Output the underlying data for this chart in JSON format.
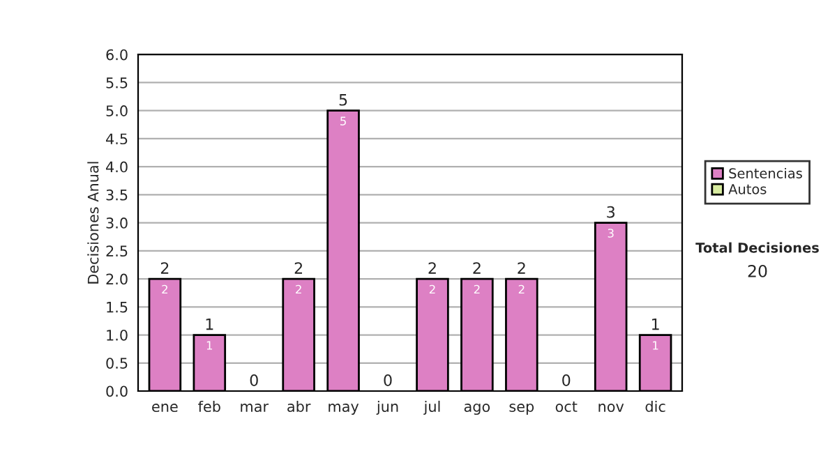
{
  "chart_data": {
    "type": "bar",
    "stacked": true,
    "ylabel": "Decisiones Anual",
    "categories": [
      "ene",
      "feb",
      "mar",
      "abr",
      "may",
      "jun",
      "jul",
      "ago",
      "sep",
      "oct",
      "nov",
      "dic"
    ],
    "series": [
      {
        "name": "Sentencias",
        "color": "#dd80c4",
        "values": [
          2,
          1,
          0,
          2,
          5,
          0,
          2,
          2,
          2,
          0,
          3,
          1
        ],
        "value_labels": [
          "2",
          "1",
          null,
          "2",
          "5",
          null,
          "2",
          "2",
          "2",
          null,
          "3",
          "1"
        ]
      },
      {
        "name": "Autos",
        "color": "#d8eca0",
        "values": [
          0,
          0,
          0,
          0,
          0,
          0,
          0,
          0,
          0,
          0,
          0,
          0
        ]
      }
    ],
    "totals": [
      "2",
      "1",
      "0",
      "2",
      "5",
      "0",
      "2",
      "2",
      "2",
      "0",
      "3",
      "1"
    ],
    "ylim": [
      0,
      6
    ],
    "yticks": [
      {
        "value": 0,
        "label": "0.0"
      },
      {
        "value": 0.5,
        "label": "0.5"
      },
      {
        "value": 1,
        "label": "1.0"
      },
      {
        "value": 1.5,
        "label": "1.5"
      },
      {
        "value": 2,
        "label": "2.0"
      },
      {
        "value": 2.5,
        "label": "2.5"
      },
      {
        "value": 3,
        "label": "3.0"
      },
      {
        "value": 3.5,
        "label": "3.5"
      },
      {
        "value": 4,
        "label": "4.0"
      },
      {
        "value": 4.5,
        "label": "4.5"
      },
      {
        "value": 5,
        "label": "5.0"
      },
      {
        "value": 5.5,
        "label": "5.5"
      },
      {
        "value": 6,
        "label": "6.0"
      }
    ],
    "grid": "y",
    "legend": "right",
    "annotations": [
      "Total Decisiones",
      "20"
    ]
  }
}
